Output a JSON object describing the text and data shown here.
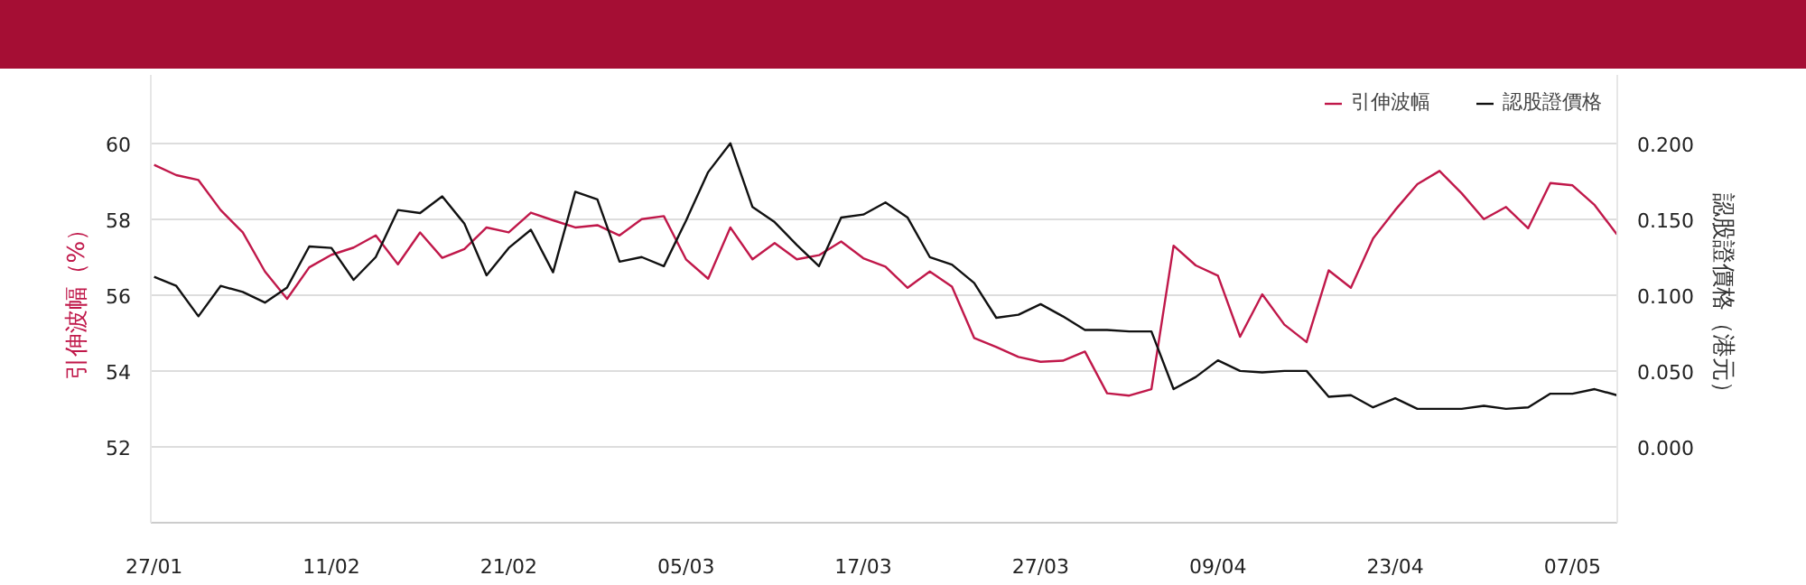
{
  "chart_data": {
    "type": "line",
    "categories": [
      "27/01",
      null,
      null,
      null,
      null,
      null,
      null,
      null,
      "11/02",
      null,
      null,
      null,
      null,
      null,
      null,
      null,
      "21/02",
      null,
      null,
      null,
      null,
      null,
      null,
      null,
      "05/03",
      null,
      null,
      null,
      null,
      null,
      null,
      null,
      "17/03",
      null,
      null,
      null,
      null,
      null,
      null,
      null,
      "27/03",
      null,
      null,
      null,
      null,
      null,
      null,
      null,
      "09/04",
      null,
      null,
      null,
      null,
      null,
      null,
      null,
      "23/04",
      null,
      null,
      null,
      null,
      null,
      null,
      null,
      "07/05",
      null,
      null
    ],
    "series": [
      {
        "name": "引伸波幅",
        "color": "#c0184a",
        "values": [
          59.43,
          59.16,
          59.03,
          58.24,
          57.65,
          56.62,
          55.9,
          56.73,
          57.06,
          57.25,
          57.57,
          56.81,
          57.65,
          56.98,
          57.21,
          57.78,
          57.65,
          58.17,
          57.97,
          57.78,
          57.84,
          57.57,
          58.0,
          58.08,
          56.94,
          56.43,
          57.78,
          56.94,
          57.37,
          56.94,
          57.05,
          57.41,
          56.97,
          56.75,
          56.19,
          56.62,
          56.22,
          54.87,
          54.63,
          54.37,
          54.24,
          54.27,
          54.51,
          53.41,
          53.35,
          53.52,
          57.3,
          56.78,
          56.51,
          54.9,
          56.02,
          55.22,
          54.76,
          56.65,
          56.19,
          57.49,
          58.24,
          58.92,
          59.27,
          58.68,
          58.0,
          58.32,
          57.76,
          58.95,
          58.89,
          58.37,
          57.6
        ]
      },
      {
        "name": "認股證價格",
        "color": "#111111",
        "axis": "y2",
        "values": [
          0.112,
          0.106,
          0.086,
          0.106,
          0.102,
          0.095,
          0.105,
          0.132,
          0.131,
          0.11,
          0.125,
          0.156,
          0.154,
          0.165,
          0.147,
          0.113,
          0.131,
          0.143,
          0.115,
          0.168,
          0.163,
          0.122,
          0.125,
          0.119,
          0.149,
          0.181,
          0.2,
          0.158,
          0.148,
          0.133,
          0.119,
          0.151,
          0.153,
          0.161,
          0.151,
          0.125,
          0.12,
          0.108,
          0.085,
          0.087,
          0.094,
          0.086,
          0.077,
          0.077,
          0.076,
          0.076,
          0.038,
          0.046,
          0.057,
          0.05,
          0.049,
          0.05,
          0.05,
          0.033,
          0.034,
          0.026,
          0.032,
          0.025,
          0.025,
          0.025,
          0.027,
          0.025,
          0.026,
          0.035,
          0.035,
          0.038,
          0.034
        ]
      }
    ],
    "ylabel": "引伸波幅（%）",
    "y2label": "認股證價格（港元）",
    "ylim": [
      50,
      61.8
    ],
    "yticks": [
      52,
      54,
      56,
      58,
      60
    ],
    "y2lim": [
      -0.05,
      0.245
    ],
    "y2ticks": [
      {
        "value": 0,
        "label": "0.000"
      },
      {
        "value": 0.05,
        "label": "0.050"
      },
      {
        "value": 0.1,
        "label": "0.100"
      },
      {
        "value": 0.15,
        "label": "0.150"
      },
      {
        "value": 0.2,
        "label": "0.200"
      }
    ],
    "grid": "y",
    "legend": "top right",
    "marker": "none",
    "line_style": "solid"
  }
}
